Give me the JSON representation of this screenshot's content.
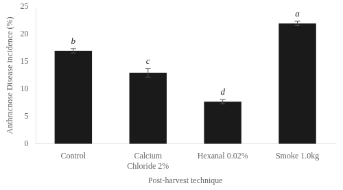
{
  "chart_data": {
    "type": "bar",
    "categories": [
      "Control",
      "Calcium\nChloride 2%",
      "Hexanal 0.02%",
      "Smoke 1.0kg"
    ],
    "values": [
      17.0,
      13.0,
      7.7,
      22.0
    ],
    "errors": [
      0.4,
      0.8,
      0.4,
      0.4
    ],
    "annotations": [
      "b",
      "c",
      "d",
      "a"
    ],
    "color": "#1a1a1a",
    "xlabel": "Post-harvest technique",
    "ylabel": "Anthracnose Disease incidence (%)",
    "ylim": [
      0,
      25
    ],
    "yticks": [
      0,
      5,
      10,
      15,
      20,
      25
    ],
    "grid": false
  }
}
